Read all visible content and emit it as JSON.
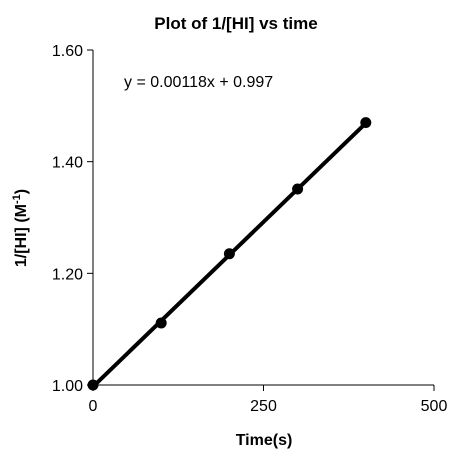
{
  "chart_data": {
    "type": "scatter",
    "title": "Plot of 1/[HI] vs time",
    "xlabel": "Time(s)",
    "ylabel": "1/[HI] (M",
    "ylabel_sup": "-1",
    "ylabel_suffix": ")",
    "xlim": [
      0,
      500
    ],
    "ylim": [
      1.0,
      1.6
    ],
    "x_ticks": [
      0,
      250,
      500
    ],
    "x_tick_labels": [
      "0",
      "250",
      "500"
    ],
    "y_ticks": [
      1.0,
      1.2,
      1.4,
      1.6
    ],
    "y_tick_labels": [
      "1.00",
      "1.20",
      "1.40",
      "1.60"
    ],
    "grid": false,
    "legend": "none",
    "series": [
      {
        "x": [
          0,
          100,
          200,
          300,
          400
        ],
        "y": [
          1.0,
          1.111,
          1.235,
          1.351,
          1.47
        ],
        "marker_color": "#000000"
      }
    ],
    "trendline": {
      "slope": 0.00118,
      "intercept": 0.997,
      "x_range": [
        0,
        400
      ],
      "color": "#000000"
    },
    "annotations": [
      {
        "text": "y = 0.00118x + 0.997"
      }
    ]
  }
}
